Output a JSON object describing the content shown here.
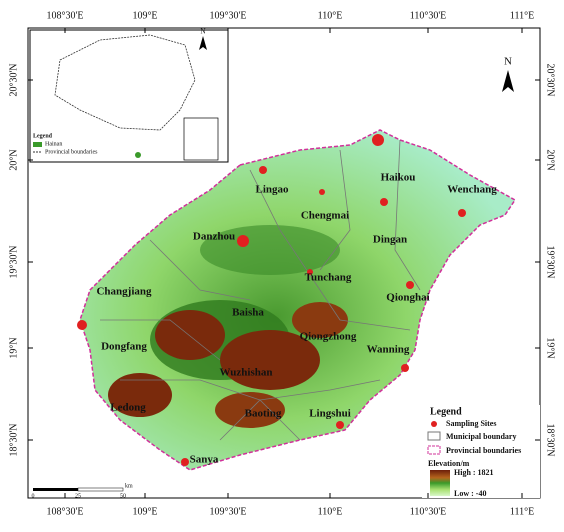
{
  "longitude_labels": [
    "108°30'E",
    "109°E",
    "109°30'E",
    "110°E",
    "110°30'E",
    "111°E"
  ],
  "latitude_labels": [
    "20°30'N",
    "20°N",
    "19°30'N",
    "19°N",
    "18°30'N"
  ],
  "places": [
    "Lingao",
    "Haikou",
    "Wenchang",
    "Chengmai",
    "Danzhou",
    "Dingan",
    "Tunchang",
    "Changjiang",
    "Qionghai",
    "Baisha",
    "Qiongzhong",
    "Dongfang",
    "Wanning",
    "Wuzhishan",
    "Ledong",
    "Baoting",
    "Lingshui",
    "Sanya"
  ],
  "north_label": "N",
  "scale_bar": {
    "labels": [
      "0",
      "25",
      "50"
    ],
    "unit": "km"
  },
  "inset": {
    "north_label": "N",
    "legend_title": "Legend",
    "items": [
      "Hainan",
      "Provincial boundaries"
    ]
  },
  "legend": {
    "title": "Legend",
    "items": [
      "Sampling Sites",
      "Municipal boundary",
      "Provincial boundaries"
    ],
    "elevation_title": "Elevation/m",
    "high": "High : 1821",
    "low": "Low : -40"
  }
}
